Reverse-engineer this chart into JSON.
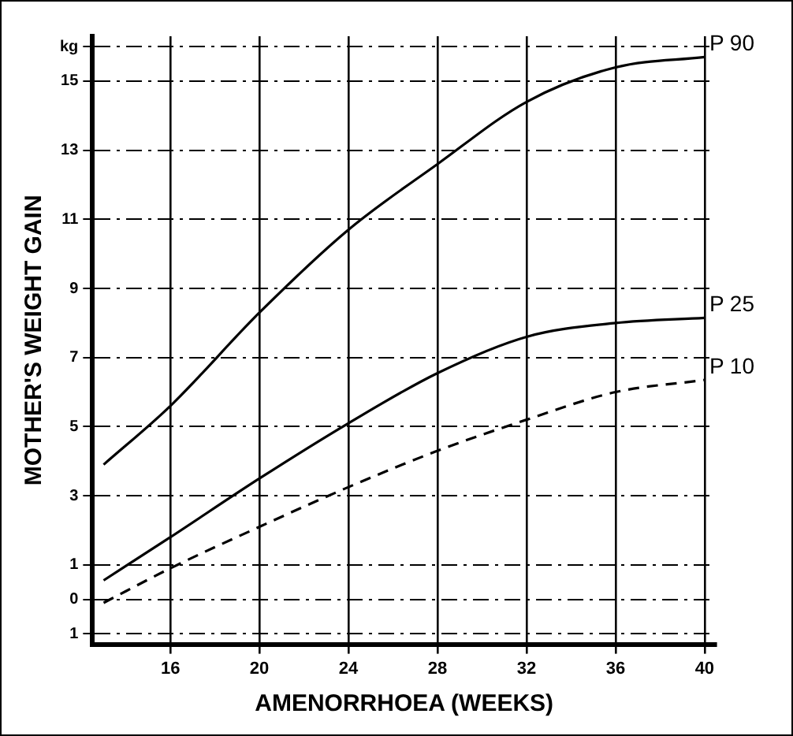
{
  "chart_data": {
    "type": "line",
    "xlabel": "AMENORRHOEA (WEEKS)",
    "ylabel": "MOTHER'S WEIGHT GAIN",
    "x": [
      13,
      16,
      20,
      24,
      28,
      32,
      36,
      40
    ],
    "series": [
      {
        "name": "P 90",
        "color": "#000000",
        "values": [
          3.9,
          5.6,
          8.3,
          10.7,
          12.6,
          14.4,
          15.4,
          15.7
        ]
      },
      {
        "name": "P 25",
        "color": "#000000",
        "values": [
          0.55,
          1.8,
          3.5,
          5.1,
          6.55,
          7.6,
          8.0,
          8.15
        ]
      },
      {
        "name": "P 10",
        "color": "#000000",
        "line_style": "dashed",
        "values": [
          -0.1,
          0.9,
          2.1,
          3.25,
          4.3,
          5.2,
          6.0,
          6.35
        ]
      }
    ],
    "xlim": [
      12.5,
      40.5
    ],
    "xticks": [
      16,
      20,
      24,
      28,
      32,
      36,
      40
    ],
    "ylim": [
      -1.3,
      16.3
    ],
    "yticks": [
      {
        "value": -1,
        "label": "1"
      },
      0,
      1,
      3,
      5,
      7,
      9,
      11,
      13,
      15,
      {
        "value": 16,
        "label": "kg"
      }
    ],
    "grid": true,
    "legend": false,
    "marker": "none",
    "line_style": "solid"
  }
}
